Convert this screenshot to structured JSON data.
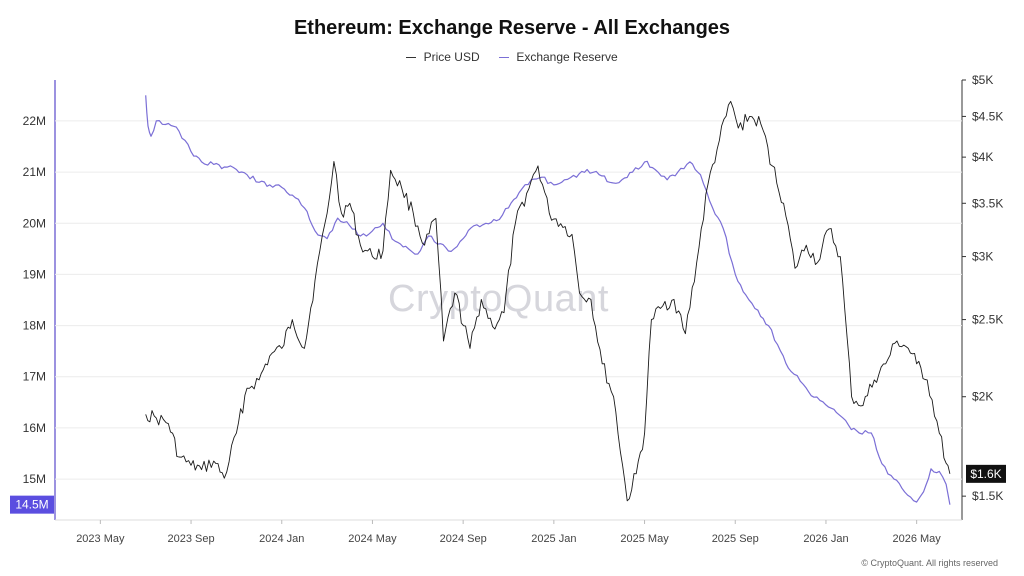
{
  "chart_data": {
    "type": "line",
    "title": "Ethereum: Exchange Reserve - All Exchanges",
    "watermark": "CryptoQuant",
    "copyright": "© CryptoQuant. All rights reserved",
    "legend": {
      "placement": "top-center",
      "items": [
        "Price USD",
        "Exchange Reserve"
      ]
    },
    "grid": {
      "horizontal": true,
      "vertical": false
    },
    "x_ticks": [
      "2023 May",
      "2023 Sep",
      "2024 Jan",
      "2024 May",
      "2024 Sep",
      "2025 Jan",
      "2025 May",
      "2025 Sep",
      "2026 Jan",
      "2026 May"
    ],
    "x_range": [
      "2023-03",
      "2026-07"
    ],
    "y_left": {
      "label": "",
      "ticks": [
        "15M",
        "16M",
        "17M",
        "18M",
        "19M",
        "20M",
        "21M",
        "22M"
      ],
      "range": [
        14.2,
        22.8
      ]
    },
    "y_right": {
      "label": "",
      "scale": "log",
      "ticks": [
        "$1.5K",
        "$2K",
        "$2.5K",
        "$3K",
        "$3.5K",
        "$4K",
        "$4.5K",
        "$5K"
      ],
      "range": [
        1400,
        5000
      ]
    },
    "current_labels": {
      "reserve": "14.5M",
      "price": "$1.6K"
    },
    "colors": {
      "price": "#1a1a1a",
      "reserve": "#7b6fd6",
      "reserve_badge": "#5b4ee0",
      "price_badge": "#111111",
      "grid": "#ececec"
    },
    "series": [
      {
        "name": "Exchange Reserve",
        "axis": "left",
        "unit": "M",
        "points": [
          [
            "2023-07-01",
            22.5
          ],
          [
            "2023-07-04",
            21.9
          ],
          [
            "2023-07-08",
            21.7
          ],
          [
            "2023-07-15",
            22.0
          ],
          [
            "2023-08-01",
            21.95
          ],
          [
            "2023-08-15",
            21.8
          ],
          [
            "2023-09-01",
            21.4
          ],
          [
            "2023-09-15",
            21.2
          ],
          [
            "2023-10-01",
            21.15
          ],
          [
            "2023-10-15",
            21.1
          ],
          [
            "2023-11-01",
            21.05
          ],
          [
            "2023-11-15",
            20.95
          ],
          [
            "2023-12-01",
            20.8
          ],
          [
            "2023-12-15",
            20.75
          ],
          [
            "2024-01-01",
            20.7
          ],
          [
            "2024-01-15",
            20.55
          ],
          [
            "2024-02-01",
            20.3
          ],
          [
            "2024-02-15",
            19.85
          ],
          [
            "2024-03-01",
            19.7
          ],
          [
            "2024-03-15",
            20.1
          ],
          [
            "2024-04-01",
            19.95
          ],
          [
            "2024-04-15",
            19.75
          ],
          [
            "2024-05-01",
            19.85
          ],
          [
            "2024-05-15",
            20.0
          ],
          [
            "2024-06-01",
            19.65
          ],
          [
            "2024-06-15",
            19.55
          ],
          [
            "2024-07-01",
            19.4
          ],
          [
            "2024-07-15",
            19.75
          ],
          [
            "2024-08-01",
            19.6
          ],
          [
            "2024-08-15",
            19.45
          ],
          [
            "2024-09-01",
            19.7
          ],
          [
            "2024-09-15",
            19.95
          ],
          [
            "2024-10-01",
            20.0
          ],
          [
            "2024-10-15",
            20.05
          ],
          [
            "2024-11-01",
            20.3
          ],
          [
            "2024-11-15",
            20.6
          ],
          [
            "2024-12-01",
            20.85
          ],
          [
            "2024-12-15",
            20.9
          ],
          [
            "2025-01-01",
            20.75
          ],
          [
            "2025-01-15",
            20.85
          ],
          [
            "2025-02-01",
            20.9
          ],
          [
            "2025-02-15",
            21.05
          ],
          [
            "2025-03-01",
            20.95
          ],
          [
            "2025-03-15",
            20.8
          ],
          [
            "2025-04-01",
            20.85
          ],
          [
            "2025-04-15",
            21.0
          ],
          [
            "2025-05-01",
            21.2
          ],
          [
            "2025-05-15",
            21.05
          ],
          [
            "2025-06-01",
            20.85
          ],
          [
            "2025-06-15",
            21.0
          ],
          [
            "2025-07-01",
            21.2
          ],
          [
            "2025-07-15",
            20.95
          ],
          [
            "2025-08-01",
            20.3
          ],
          [
            "2025-08-15",
            19.9
          ],
          [
            "2025-09-01",
            19.0
          ],
          [
            "2025-09-15",
            18.6
          ],
          [
            "2025-10-01",
            18.3
          ],
          [
            "2025-10-15",
            18.0
          ],
          [
            "2025-11-01",
            17.5
          ],
          [
            "2025-11-15",
            17.1
          ],
          [
            "2025-12-01",
            16.85
          ],
          [
            "2025-12-15",
            16.6
          ],
          [
            "2026-01-01",
            16.45
          ],
          [
            "2026-01-15",
            16.3
          ],
          [
            "2026-02-01",
            16.05
          ],
          [
            "2026-02-15",
            15.9
          ],
          [
            "2026-03-01",
            15.9
          ],
          [
            "2026-03-15",
            15.3
          ],
          [
            "2026-04-01",
            15.0
          ],
          [
            "2026-04-15",
            14.75
          ],
          [
            "2026-05-01",
            14.55
          ],
          [
            "2026-05-10",
            14.75
          ],
          [
            "2026-05-20",
            15.2
          ],
          [
            "2026-06-01",
            15.15
          ],
          [
            "2026-06-10",
            14.9
          ],
          [
            "2026-06-15",
            14.5
          ]
        ]
      },
      {
        "name": "Price USD",
        "axis": "right",
        "unit": "USD",
        "points": [
          [
            "2023-07-01",
            1900
          ],
          [
            "2023-07-15",
            1880
          ],
          [
            "2023-08-01",
            1850
          ],
          [
            "2023-08-15",
            1680
          ],
          [
            "2023-09-01",
            1640
          ],
          [
            "2023-09-15",
            1620
          ],
          [
            "2023-10-01",
            1660
          ],
          [
            "2023-10-15",
            1580
          ],
          [
            "2023-11-01",
            1800
          ],
          [
            "2023-11-15",
            2050
          ],
          [
            "2023-12-01",
            2100
          ],
          [
            "2023-12-15",
            2250
          ],
          [
            "2024-01-01",
            2300
          ],
          [
            "2024-01-15",
            2500
          ],
          [
            "2024-02-01",
            2300
          ],
          [
            "2024-02-15",
            2800
          ],
          [
            "2024-03-01",
            3400
          ],
          [
            "2024-03-10",
            3950
          ],
          [
            "2024-03-20",
            3400
          ],
          [
            "2024-04-01",
            3500
          ],
          [
            "2024-04-15",
            3100
          ],
          [
            "2024-05-01",
            3000
          ],
          [
            "2024-05-15",
            3050
          ],
          [
            "2024-05-25",
            3850
          ],
          [
            "2024-06-10",
            3650
          ],
          [
            "2024-06-25",
            3400
          ],
          [
            "2024-07-10",
            3100
          ],
          [
            "2024-07-25",
            3350
          ],
          [
            "2024-08-05",
            2350
          ],
          [
            "2024-08-20",
            2700
          ],
          [
            "2024-09-10",
            2300
          ],
          [
            "2024-09-25",
            2650
          ],
          [
            "2024-10-10",
            2450
          ],
          [
            "2024-10-25",
            2550
          ],
          [
            "2024-11-10",
            3300
          ],
          [
            "2024-11-25",
            3600
          ],
          [
            "2024-12-10",
            3900
          ],
          [
            "2024-12-25",
            3400
          ],
          [
            "2025-01-10",
            3300
          ],
          [
            "2025-01-25",
            3200
          ],
          [
            "2025-02-05",
            2700
          ],
          [
            "2025-02-20",
            2650
          ],
          [
            "2025-03-05",
            2200
          ],
          [
            "2025-03-20",
            2000
          ],
          [
            "2025-04-08",
            1480
          ],
          [
            "2025-04-20",
            1600
          ],
          [
            "2025-05-01",
            1800
          ],
          [
            "2025-05-10",
            2500
          ],
          [
            "2025-05-25",
            2600
          ],
          [
            "2025-06-10",
            2650
          ],
          [
            "2025-06-25",
            2400
          ],
          [
            "2025-07-10",
            2950
          ],
          [
            "2025-07-25",
            3700
          ],
          [
            "2025-08-10",
            4200
          ],
          [
            "2025-08-25",
            4700
          ],
          [
            "2025-09-05",
            4350
          ],
          [
            "2025-09-20",
            4500
          ],
          [
            "2025-10-05",
            4400
          ],
          [
            "2025-10-20",
            3900
          ],
          [
            "2025-11-05",
            3500
          ],
          [
            "2025-11-20",
            2900
          ],
          [
            "2025-12-05",
            3100
          ],
          [
            "2025-12-20",
            2950
          ],
          [
            "2026-01-05",
            3250
          ],
          [
            "2026-01-20",
            3000
          ],
          [
            "2026-02-05",
            2000
          ],
          [
            "2026-02-20",
            1950
          ],
          [
            "2026-03-05",
            2100
          ],
          [
            "2026-03-20",
            2200
          ],
          [
            "2026-04-05",
            2350
          ],
          [
            "2026-04-20",
            2300
          ],
          [
            "2026-05-01",
            2200
          ],
          [
            "2026-05-15",
            2100
          ],
          [
            "2026-06-01",
            1800
          ],
          [
            "2026-06-10",
            1650
          ],
          [
            "2026-06-15",
            1600
          ]
        ]
      }
    ]
  }
}
